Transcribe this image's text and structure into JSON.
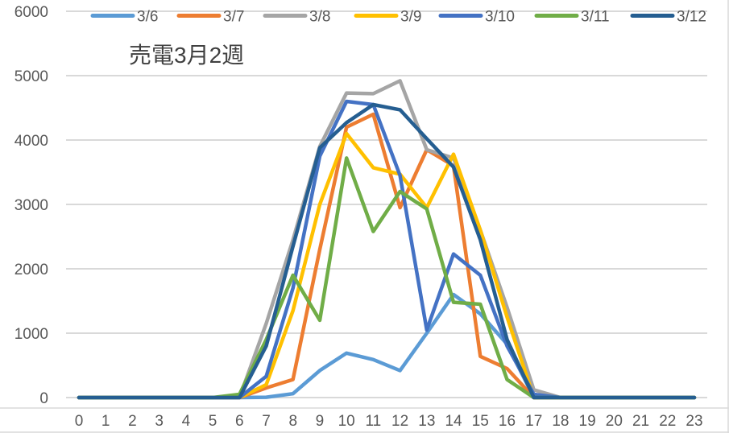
{
  "chart_data": {
    "type": "line",
    "title": "売電3月2週",
    "xlabel": "",
    "ylabel": "",
    "ylim": [
      0,
      6000
    ],
    "yticks": [
      0,
      1000,
      2000,
      3000,
      4000,
      5000,
      6000
    ],
    "grid": true,
    "legend_position": "top",
    "categories": [
      "0",
      "1",
      "2",
      "3",
      "4",
      "5",
      "6",
      "7",
      "8",
      "9",
      "10",
      "11",
      "12",
      "13",
      "14",
      "15",
      "16",
      "17",
      "18",
      "19",
      "20",
      "21",
      "22",
      "23"
    ],
    "series": [
      {
        "name": "3/6",
        "color": "#5B9BD5",
        "values": [
          0,
          0,
          0,
          0,
          0,
          0,
          0,
          5,
          60,
          420,
          690,
          590,
          420,
          1000,
          1600,
          1300,
          830,
          0,
          0,
          0,
          0,
          0,
          0,
          0
        ]
      },
      {
        "name": "3/7",
        "color": "#ED7D31",
        "values": [
          0,
          0,
          0,
          0,
          0,
          0,
          0,
          150,
          280,
          2300,
          4200,
          4400,
          2950,
          3850,
          3600,
          640,
          450,
          0,
          0,
          0,
          0,
          0,
          0,
          0
        ]
      },
      {
        "name": "3/8",
        "color": "#A5A5A5",
        "values": [
          0,
          0,
          0,
          0,
          0,
          0,
          0,
          1150,
          2450,
          3900,
          4730,
          4720,
          4920,
          3850,
          3720,
          2600,
          1400,
          120,
          0,
          0,
          0,
          0,
          0,
          0
        ]
      },
      {
        "name": "3/9",
        "color": "#FFC000",
        "values": [
          0,
          0,
          0,
          0,
          0,
          0,
          0,
          200,
          1350,
          3000,
          4100,
          3570,
          3470,
          2950,
          3780,
          2600,
          1250,
          0,
          0,
          0,
          0,
          0,
          0,
          0
        ]
      },
      {
        "name": "3/10",
        "color": "#4472C4",
        "values": [
          0,
          0,
          0,
          0,
          0,
          0,
          0,
          330,
          1700,
          3750,
          4600,
          4550,
          3450,
          1050,
          2230,
          1900,
          800,
          50,
          0,
          0,
          0,
          0,
          0,
          0
        ]
      },
      {
        "name": "3/11",
        "color": "#70AD47",
        "values": [
          0,
          0,
          0,
          0,
          0,
          0,
          50,
          900,
          1900,
          1200,
          3720,
          2580,
          3200,
          2930,
          1480,
          1450,
          280,
          0,
          0,
          0,
          0,
          0,
          0,
          0
        ]
      },
      {
        "name": "3/12",
        "color": "#255E91",
        "values": [
          0,
          0,
          0,
          0,
          0,
          0,
          0,
          800,
          2350,
          3880,
          4270,
          4550,
          4470,
          4020,
          3580,
          2450,
          900,
          0,
          0,
          0,
          0,
          0,
          0,
          0
        ]
      }
    ]
  },
  "colors": {
    "gridline": "#D9D9D9",
    "axis_text": "#595959",
    "title_text": "#404040",
    "frame": "#D9D9D9"
  }
}
